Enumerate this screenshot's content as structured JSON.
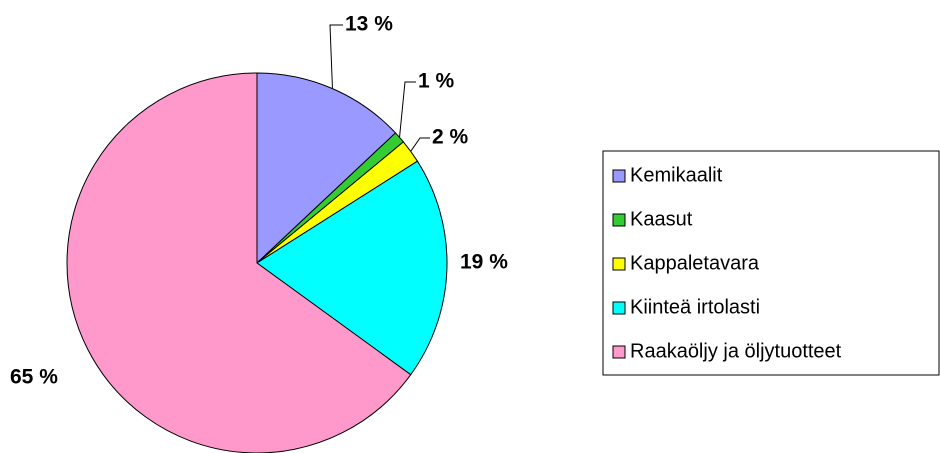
{
  "chart_data": {
    "type": "pie",
    "categories": [
      "Kemikaalit",
      "Kaasut",
      "Kappaletavara",
      "Kiinteä irtolasti",
      "Raakaöljy ja öljytuotteet"
    ],
    "values": [
      13,
      1,
      2,
      19,
      65
    ],
    "value_labels": [
      "13 %",
      "1 %",
      "2 %",
      "19 %",
      "65 %"
    ],
    "colors": [
      "#9999ff",
      "#33cc33",
      "#ffff00",
      "#00ffff",
      "#ff99cc"
    ]
  }
}
